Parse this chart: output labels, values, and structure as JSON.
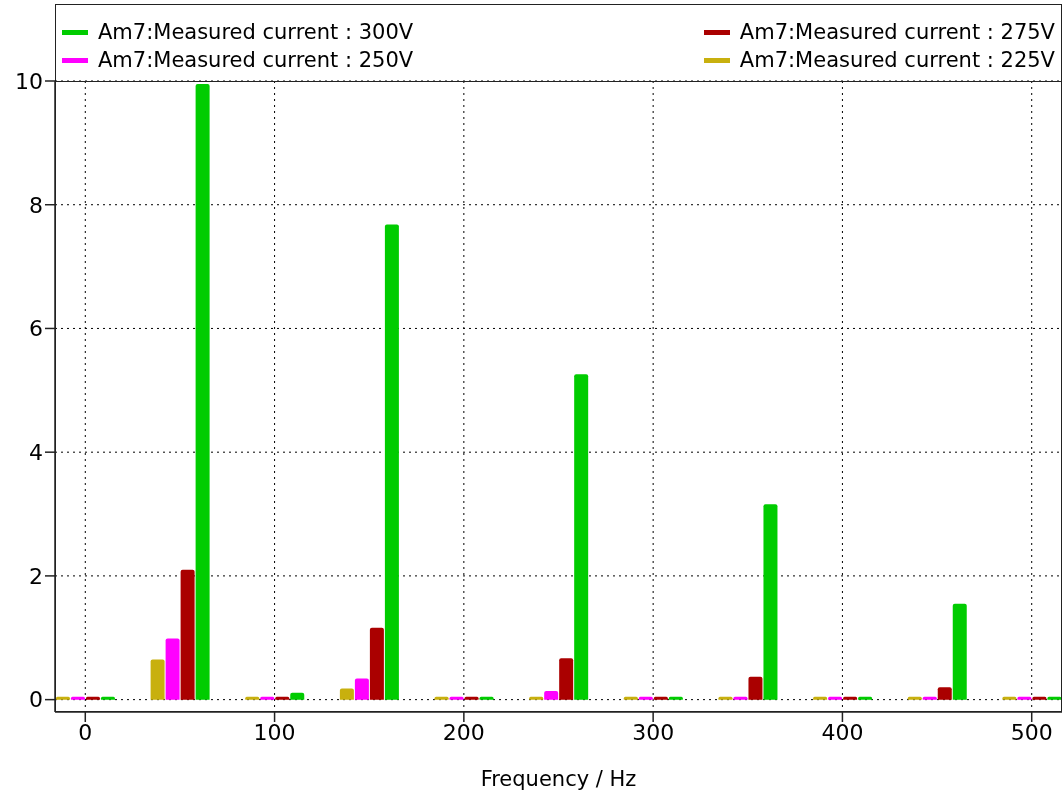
{
  "chart_data": {
    "type": "bar",
    "xlabel": "Frequency / Hz",
    "x": [
      0,
      50,
      100,
      150,
      200,
      250,
      300,
      350,
      400,
      450,
      500
    ],
    "series": [
      {
        "name": "Am7:Measured current : 225V",
        "color": "#c8b00e",
        "values": [
          0,
          0.65,
          0,
          0.18,
          0,
          0,
          0,
          0,
          0,
          0,
          0
        ]
      },
      {
        "name": "Am7:Measured current : 250V",
        "color": "#ff00ff",
        "values": [
          0,
          0.99,
          0,
          0.34,
          0,
          0.14,
          0,
          0,
          0,
          0,
          0
        ]
      },
      {
        "name": "Am7:Measured current : 275V",
        "color": "#aa0000",
        "values": [
          0,
          2.1,
          0,
          1.16,
          0,
          0.67,
          0,
          0.37,
          0,
          0.2,
          0
        ]
      },
      {
        "name": "Am7:Measured current : 300V",
        "color": "#00cc00",
        "values": [
          0,
          9.95,
          0.11,
          7.68,
          0,
          5.26,
          0,
          3.16,
          0,
          1.55,
          0
        ]
      }
    ],
    "xlim": [
      -16,
      516
    ],
    "xticks": [
      0,
      100,
      200,
      300,
      400,
      500
    ],
    "ylim": [
      -0.2,
      10
    ],
    "yticks": [
      0,
      2,
      4,
      6,
      8,
      10
    ],
    "grid": true,
    "legend": "top"
  }
}
